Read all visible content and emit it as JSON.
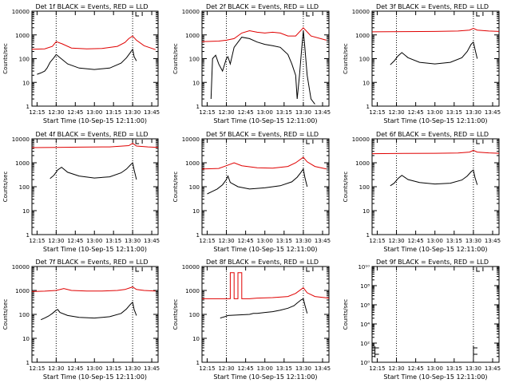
{
  "figure": {
    "xlabel": "Start Time (10-Sep-15 12:11:00)",
    "ylabel": "Counts/sec",
    "xticks": [
      "12:15",
      "12:30",
      "12:45",
      "13:00",
      "13:15",
      "13:30",
      "13:45"
    ],
    "xtick_minutes": [
      12.25,
      12.5,
      12.75,
      13.0,
      13.25,
      13.5,
      13.75
    ],
    "colors": {
      "events": "#000000",
      "lld": "#e00000",
      "axes": "#000000"
    }
  },
  "chart_data": [
    {
      "type": "line",
      "title": "Det 1f BLACK = Events, RED = LLD",
      "yscale": "log",
      "ylim": [
        1,
        10000
      ],
      "xlim": [
        12.183,
        13.833
      ],
      "yticks": [
        "1",
        "10",
        "100",
        "1000",
        "10000"
      ],
      "vlines": [
        12.5,
        13.5
      ],
      "series": [
        {
          "name": "LLD",
          "x": [
            12.183,
            12.35,
            12.45,
            12.5,
            12.58,
            12.7,
            12.9,
            13.1,
            13.3,
            13.4,
            13.45,
            13.5,
            13.55,
            13.65,
            13.8
          ],
          "y": [
            250,
            260,
            330,
            520,
            420,
            280,
            260,
            270,
            330,
            480,
            700,
            900,
            600,
            350,
            240
          ]
        },
        {
          "name": "Events",
          "x": [
            12.25,
            12.3,
            12.35,
            12.38,
            12.42,
            12.47,
            12.5,
            12.55,
            12.65,
            12.8,
            13.0,
            13.2,
            13.35,
            13.42,
            13.47,
            13.5,
            13.52,
            13.55
          ],
          "y": [
            22,
            25,
            30,
            40,
            70,
            110,
            150,
            110,
            60,
            40,
            35,
            40,
            65,
            110,
            180,
            250,
            120,
            80
          ]
        }
      ]
    },
    {
      "type": "line",
      "title": "Det 2f BLACK = Events, RED = LLD",
      "yscale": "log",
      "ylim": [
        1,
        10000
      ],
      "xlim": [
        12.183,
        13.833
      ],
      "yticks": [
        "1",
        "10",
        "100",
        "1000",
        "10000"
      ],
      "vlines": [
        12.5,
        13.5
      ],
      "series": [
        {
          "name": "LLD",
          "x": [
            12.183,
            12.4,
            12.5,
            12.6,
            12.7,
            12.8,
            12.9,
            13.0,
            13.1,
            13.2,
            13.3,
            13.4,
            13.5,
            13.6,
            13.8
          ],
          "y": [
            520,
            550,
            600,
            700,
            1200,
            1500,
            1300,
            1200,
            1300,
            1200,
            900,
            900,
            2000,
            900,
            600
          ]
        },
        {
          "name": "Events",
          "x": [
            12.3,
            12.32,
            12.36,
            12.4,
            12.45,
            12.5,
            12.52,
            12.55,
            12.6,
            12.7,
            12.8,
            12.9,
            13.0,
            13.1,
            13.2,
            13.3,
            13.35,
            13.4,
            13.42,
            13.45,
            13.48,
            13.5,
            13.52,
            13.55,
            13.6,
            13.65
          ],
          "y": [
            2,
            100,
            140,
            60,
            30,
            100,
            120,
            60,
            300,
            800,
            700,
            500,
            400,
            350,
            300,
            150,
            60,
            20,
            2,
            20,
            300,
            1500,
            300,
            20,
            2,
            1.2
          ]
        }
      ]
    },
    {
      "type": "line",
      "title": "Det 3f BLACK = Events, RED = LLD",
      "yscale": "log",
      "ylim": [
        1,
        10000
      ],
      "xlim": [
        12.183,
        13.833
      ],
      "yticks": [
        "1",
        "10",
        "100",
        "1000",
        "10000"
      ],
      "vlines": [
        12.5,
        13.5
      ],
      "series": [
        {
          "name": "LLD",
          "x": [
            12.183,
            12.6,
            13.0,
            13.3,
            13.45,
            13.5,
            13.55,
            13.7,
            13.833
          ],
          "y": [
            1350,
            1380,
            1400,
            1450,
            1600,
            1900,
            1600,
            1450,
            1400
          ]
        },
        {
          "name": "Events",
          "x": [
            12.42,
            12.47,
            12.52,
            12.57,
            12.65,
            12.8,
            13.0,
            13.2,
            13.35,
            13.42,
            13.47,
            13.5,
            13.52,
            13.55
          ],
          "y": [
            55,
            80,
            130,
            180,
            110,
            70,
            60,
            70,
            110,
            200,
            400,
            500,
            260,
            100
          ]
        }
      ]
    },
    {
      "type": "line",
      "title": "Det 4f BLACK = Events, RED = LLD",
      "yscale": "log",
      "ylim": [
        1,
        10000
      ],
      "xlim": [
        12.183,
        13.833
      ],
      "yticks": [
        "1",
        "10",
        "100",
        "1000",
        "10000"
      ],
      "vlines": [
        12.5,
        13.5
      ],
      "series": [
        {
          "name": "LLD",
          "x": [
            12.183,
            12.5,
            12.8,
            13.2,
            13.45,
            13.5,
            13.55,
            13.7,
            13.833
          ],
          "y": [
            4300,
            4400,
            4500,
            4600,
            5200,
            6500,
            5000,
            4600,
            4400
          ]
        },
        {
          "name": "Events",
          "x": [
            12.42,
            12.47,
            12.52,
            12.57,
            12.65,
            12.8,
            13.0,
            13.2,
            13.35,
            13.42,
            13.47,
            13.5,
            13.52,
            13.55
          ],
          "y": [
            220,
            300,
            500,
            650,
            400,
            280,
            230,
            260,
            380,
            550,
            800,
            1000,
            500,
            200
          ]
        }
      ]
    },
    {
      "type": "line",
      "title": "Det 5f BLACK = Events, RED = LLD",
      "yscale": "log",
      "ylim": [
        1,
        10000
      ],
      "xlim": [
        12.183,
        13.833
      ],
      "yticks": [
        "1",
        "10",
        "100",
        "1000",
        "10000"
      ],
      "vlines": [
        12.5,
        13.5
      ],
      "series": [
        {
          "name": "LLD",
          "x": [
            12.183,
            12.4,
            12.5,
            12.6,
            12.7,
            12.9,
            13.1,
            13.3,
            13.4,
            13.5,
            13.55,
            13.65,
            13.8
          ],
          "y": [
            550,
            580,
            750,
            1000,
            750,
            620,
            600,
            700,
            1000,
            1700,
            1100,
            700,
            550
          ]
        },
        {
          "name": "Events",
          "x": [
            12.25,
            12.3,
            12.38,
            12.45,
            12.5,
            12.52,
            12.55,
            12.65,
            12.8,
            13.0,
            13.2,
            13.35,
            13.42,
            13.47,
            13.5,
            13.52,
            13.55
          ],
          "y": [
            50,
            60,
            80,
            120,
            200,
            280,
            150,
            100,
            80,
            90,
            110,
            160,
            250,
            400,
            550,
            250,
            100
          ]
        }
      ]
    },
    {
      "type": "line",
      "title": "Det 6f BLACK = Events, RED = LLD",
      "yscale": "log",
      "ylim": [
        1,
        10000
      ],
      "xlim": [
        12.183,
        13.833
      ],
      "yticks": [
        "1",
        "10",
        "100",
        "1000",
        "10000"
      ],
      "vlines": [
        12.5,
        13.5
      ],
      "series": [
        {
          "name": "LLD",
          "x": [
            12.183,
            12.6,
            13.0,
            13.3,
            13.45,
            13.5,
            13.55,
            13.7,
            13.833
          ],
          "y": [
            2400,
            2450,
            2500,
            2550,
            2800,
            3300,
            2800,
            2600,
            2500
          ]
        },
        {
          "name": "Events",
          "x": [
            12.42,
            12.47,
            12.52,
            12.57,
            12.65,
            12.8,
            13.0,
            13.2,
            13.35,
            13.42,
            13.47,
            13.5,
            13.52,
            13.55
          ],
          "y": [
            110,
            140,
            220,
            300,
            200,
            150,
            130,
            140,
            190,
            280,
            420,
            500,
            250,
            120
          ]
        }
      ]
    },
    {
      "type": "line",
      "title": "Det 7f BLACK = Events, RED = LLD",
      "yscale": "log",
      "ylim": [
        1,
        10000
      ],
      "xlim": [
        12.183,
        13.833
      ],
      "yticks": [
        "1",
        "10",
        "100",
        "1000",
        "10000"
      ],
      "vlines": [
        12.5,
        13.5
      ],
      "series": [
        {
          "name": "LLD",
          "x": [
            12.183,
            12.35,
            12.5,
            12.6,
            12.7,
            12.9,
            13.1,
            13.3,
            13.4,
            13.5,
            13.55,
            13.65,
            13.8
          ],
          "y": [
            900,
            930,
            1000,
            1200,
            1000,
            950,
            950,
            1000,
            1100,
            1400,
            1100,
            1000,
            950
          ]
        },
        {
          "name": "Events",
          "x": [
            12.3,
            12.35,
            12.4,
            12.45,
            12.5,
            12.52,
            12.55,
            12.65,
            12.8,
            13.0,
            13.2,
            13.35,
            13.42,
            13.47,
            13.5,
            13.52,
            13.55
          ],
          "y": [
            60,
            70,
            85,
            110,
            150,
            160,
            120,
            90,
            75,
            70,
            80,
            110,
            170,
            260,
            320,
            160,
            90
          ]
        }
      ]
    },
    {
      "type": "line",
      "title": "Det 8f BLACK = Events, RED = LLD",
      "yscale": "log",
      "ylim": [
        1,
        10000
      ],
      "xlim": [
        12.183,
        13.833
      ],
      "yticks": [
        "1",
        "10",
        "100",
        "1000",
        "10000"
      ],
      "vlines": [
        12.5,
        13.5
      ],
      "series": [
        {
          "name": "LLD",
          "x": [
            12.183,
            12.55,
            12.55,
            12.6,
            12.6,
            12.65,
            12.65,
            12.7,
            12.7,
            12.8,
            12.8,
            12.9,
            13.1,
            13.3,
            13.4,
            13.5,
            13.55,
            13.65,
            13.833
          ],
          "y": [
            450,
            450,
            5500,
            5500,
            450,
            450,
            5500,
            5500,
            450,
            450,
            450,
            480,
            500,
            560,
            750,
            1300,
            800,
            560,
            480
          ]
        },
        {
          "name": "Events",
          "x": [
            12.42,
            12.45,
            12.48,
            12.5,
            12.52,
            12.8,
            12.85,
            12.9,
            13.0,
            13.1,
            13.2,
            13.3,
            13.38,
            13.42,
            13.47,
            13.5,
            13.52,
            13.55
          ],
          "y": [
            70,
            75,
            80,
            85,
            90,
            100,
            110,
            110,
            120,
            130,
            150,
            180,
            230,
            300,
            400,
            450,
            250,
            110
          ]
        }
      ]
    },
    {
      "type": "line",
      "title": "Det 9f BLACK = Events, RED = LLD",
      "yscale": "log",
      "ylim": [
        1,
        10000000000.0
      ],
      "xlim": [
        12.183,
        13.833
      ],
      "yticks": [
        "10⁰",
        "10²",
        "10⁴",
        "10⁶",
        "10⁸",
        "10¹⁰"
      ],
      "vlines": [
        12.5,
        13.5
      ],
      "series": []
    }
  ]
}
